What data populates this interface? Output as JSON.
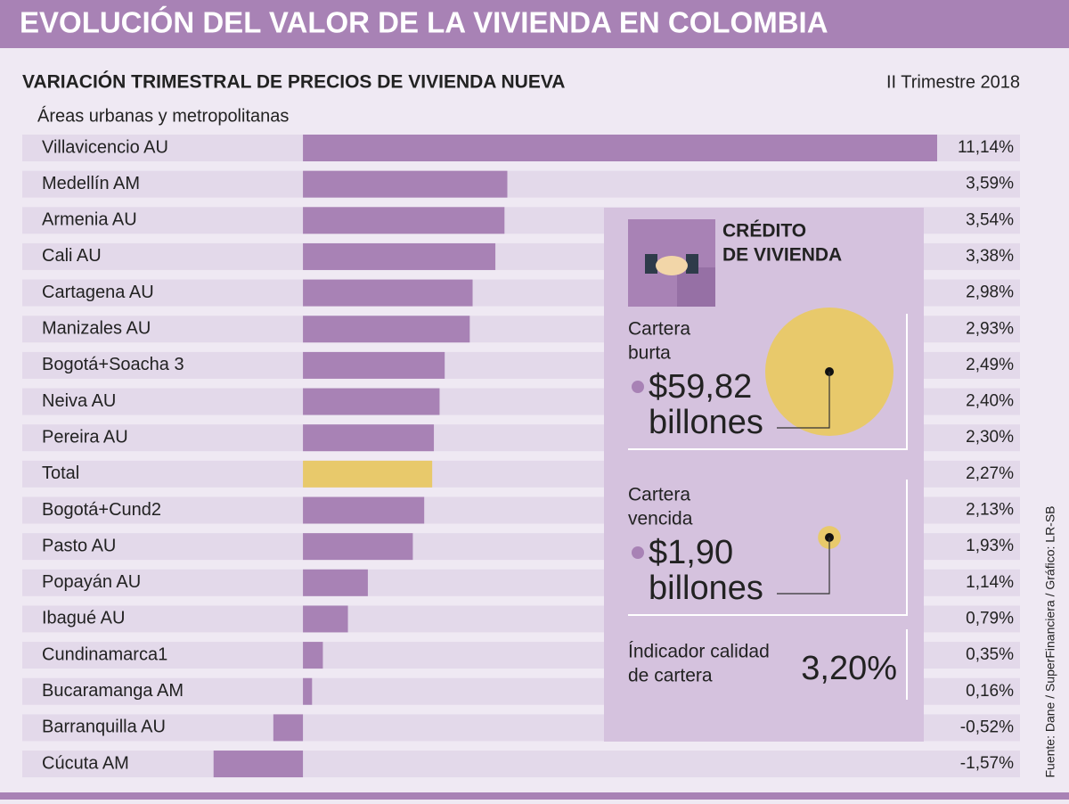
{
  "header": {
    "title": "EVOLUCIÓN DEL VALOR DE LA VIVIENDA EN COLOMBIA"
  },
  "chart_data": {
    "type": "bar",
    "orientation": "horizontal",
    "title": "VARIACIÓN TRIMESTRAL DE PRECIOS DE VIVIENDA NUEVA",
    "period": "II Trimestre 2018",
    "subtitle": "Áreas urbanas y metropolitanas",
    "categories": [
      "Villavicencio AU",
      "Medellín AM",
      "Armenia AU",
      "Cali AU",
      "Cartagena AU",
      "Manizales AU",
      "Bogotá+Soacha 3",
      "Neiva AU",
      "Pereira AU",
      "Total",
      "Bogotá+Cund2",
      "Pasto AU",
      "Popayán AU",
      "Ibagué AU",
      "Cundinamarca1",
      "Bucaramanga AM",
      "Barranquilla AU",
      "Cúcuta AM"
    ],
    "values": [
      11.14,
      3.59,
      3.54,
      3.38,
      2.98,
      2.93,
      2.49,
      2.4,
      2.3,
      2.27,
      2.13,
      1.93,
      1.14,
      0.79,
      0.35,
      0.16,
      -0.52,
      -1.57
    ],
    "value_labels": [
      "11,14%",
      "3,59%",
      "3,54%",
      "3,38%",
      "2,98%",
      "2,93%",
      "2,49%",
      "2,40%",
      "2,30%",
      "2,27%",
      "2,13%",
      "1,93%",
      "1,14%",
      "0,79%",
      "0,35%",
      "0,16%",
      "-0,52%",
      "-1,57%"
    ],
    "colors": [
      "#a882b5",
      "#a882b5",
      "#a882b5",
      "#a882b5",
      "#a882b5",
      "#a882b5",
      "#a882b5",
      "#a882b5",
      "#a882b5",
      "#e8c96b",
      "#a882b5",
      "#a882b5",
      "#a882b5",
      "#a882b5",
      "#a882b5",
      "#a882b5",
      "#a882b5",
      "#a882b5"
    ],
    "xlim": [
      -4.93,
      11.14
    ]
  },
  "panel": {
    "title_lines": [
      "CRÉDITO",
      "DE VIVIENDA"
    ],
    "items": [
      {
        "label_lines": [
          "Cartera",
          "burta"
        ],
        "amount": 59.82,
        "amount_label": "$59,82",
        "unit": "billones",
        "color": "#e8c96b"
      },
      {
        "label_lines": [
          "Cartera",
          "vencida"
        ],
        "amount": 1.9,
        "amount_label": "$1,90",
        "unit": "billones",
        "color": "#e8c96b"
      }
    ],
    "indicator": {
      "label_lines": [
        "Índicador calidad",
        "de cartera"
      ],
      "value_label": "3,20%"
    }
  },
  "source": "Fuente: Dane / SuperFinanciera / Gráfico: LR-SB"
}
